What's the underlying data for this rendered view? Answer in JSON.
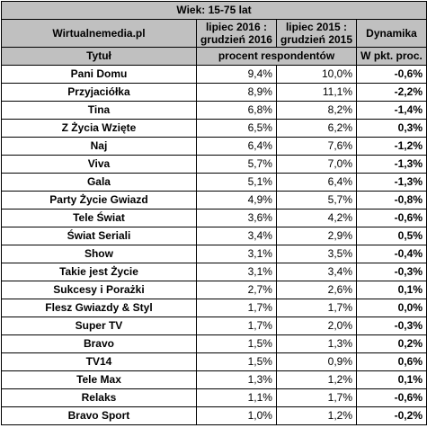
{
  "banner": "Wiek: 15-75 lat",
  "header": {
    "source": "Wirtualnemedia.pl",
    "period_a_line1": "lipiec 2016 :",
    "period_a_line2": "grudzień 2016",
    "period_b_line1": "lipiec 2015 :",
    "period_b_line2": "grudzień 2015",
    "dynamics": "Dynamika",
    "title_col": "Tytuł",
    "unit": "procent respondentów",
    "dynamics_unit": "W pkt. proc."
  },
  "rows": [
    {
      "title": "Pani Domu",
      "a": "9,4%",
      "b": "10,0%",
      "d": "-0,6%"
    },
    {
      "title": "Przyjaciółka",
      "a": "8,9%",
      "b": "11,1%",
      "d": "-2,2%"
    },
    {
      "title": "Tina",
      "a": "6,8%",
      "b": "8,2%",
      "d": "-1,4%"
    },
    {
      "title": "Z Życia Wzięte",
      "a": "6,5%",
      "b": "6,2%",
      "d": "0,3%"
    },
    {
      "title": "Naj",
      "a": "6,4%",
      "b": "7,6%",
      "d": "-1,2%"
    },
    {
      "title": "Viva",
      "a": "5,7%",
      "b": "7,0%",
      "d": "-1,3%"
    },
    {
      "title": "Gala",
      "a": "5,1%",
      "b": "6,4%",
      "d": "-1,3%"
    },
    {
      "title": "Party Życie Gwiazd",
      "a": "4,9%",
      "b": "5,7%",
      "d": "-0,8%"
    },
    {
      "title": "Tele Świat",
      "a": "3,6%",
      "b": "4,2%",
      "d": "-0,6%"
    },
    {
      "title": "Świat Seriali",
      "a": "3,4%",
      "b": "2,9%",
      "d": "0,5%"
    },
    {
      "title": "Show",
      "a": "3,1%",
      "b": "3,5%",
      "d": "-0,4%"
    },
    {
      "title": "Takie jest Życie",
      "a": "3,1%",
      "b": "3,4%",
      "d": "-0,3%"
    },
    {
      "title": "Sukcesy i Porażki",
      "a": "2,7%",
      "b": "2,6%",
      "d": "0,1%"
    },
    {
      "title": "Flesz Gwiazdy & Styl",
      "a": "1,7%",
      "b": "1,7%",
      "d": "0,0%"
    },
    {
      "title": "Super TV",
      "a": "1,7%",
      "b": "2,0%",
      "d": "-0,3%"
    },
    {
      "title": "Bravo",
      "a": "1,5%",
      "b": "1,3%",
      "d": "0,2%"
    },
    {
      "title": "TV14",
      "a": "1,5%",
      "b": "0,9%",
      "d": "0,6%"
    },
    {
      "title": "Tele Max",
      "a": "1,3%",
      "b": "1,2%",
      "d": "0,1%"
    },
    {
      "title": "Relaks",
      "a": "1,1%",
      "b": "1,7%",
      "d": "-0,6%"
    },
    {
      "title": "Bravo Sport",
      "a": "1,0%",
      "b": "1,2%",
      "d": "-0,2%"
    }
  ]
}
